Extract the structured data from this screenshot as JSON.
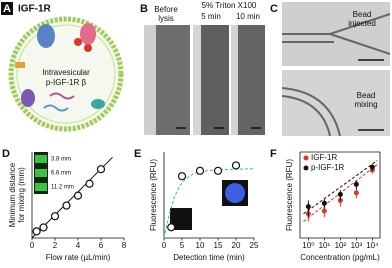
{
  "panels": {
    "a": {
      "label": "A",
      "title": "IGF-1R",
      "text": [
        "Intravesicular",
        "p-IGF-1R β"
      ]
    },
    "b": {
      "label": "B",
      "before": [
        "Before",
        "lysis"
      ],
      "treatment": "5% Triton X100",
      "times": [
        "5 min",
        "10 min"
      ]
    },
    "c": {
      "label": "C",
      "top": [
        "Bead",
        "injected"
      ],
      "bottom": [
        "Bead",
        "mixing"
      ]
    }
  },
  "chart_data": [
    {
      "type": "scatter",
      "panel": "D",
      "xlabel": "Flow rate (µL/min)",
      "ylabel": [
        "Minimum distance",
        "for mixing (mm)"
      ],
      "x": [
        0.4,
        1,
        2,
        3,
        4,
        5,
        6
      ],
      "values": [
        1,
        1.6,
        3.3,
        4.9,
        6.4,
        8.2,
        10.4
      ],
      "color": "#111",
      "fit": {
        "x": [
          0,
          7
        ],
        "values": [
          0,
          12.2
        ],
        "color": "#111",
        "dashed": false
      },
      "inset_labels": [
        "3.8 mm",
        "6.6 mm",
        "11.2 mm"
      ],
      "xlim": [
        0,
        8
      ],
      "xticks": [
        0,
        2,
        4,
        6,
        8
      ],
      "ylim": [
        0,
        13
      ]
    },
    {
      "type": "scatter",
      "panel": "E",
      "xlabel": "Detection time (min)",
      "ylabel": [
        "Fluorescence (RFU)"
      ],
      "x": [
        2,
        5,
        10,
        15,
        20
      ],
      "values": [
        20,
        115,
        125,
        125,
        135
      ],
      "color": "#111",
      "fit": {
        "x": [
          0,
          1.5,
          3,
          4.5,
          6,
          8,
          10,
          13,
          16,
          20,
          25
        ],
        "values": [
          0,
          45,
          78,
          98,
          110,
          119,
          123,
          126,
          127,
          128,
          129
        ],
        "color": "#2fb3c2",
        "dashed": true
      },
      "xlim": [
        0,
        25
      ],
      "xticks": [
        0,
        5,
        10,
        15,
        20,
        25
      ],
      "ylim": [
        0,
        160
      ]
    },
    {
      "type": "scatter",
      "panel": "F",
      "xlabel": "Concentration (pg/mL)",
      "ylabel": [
        "Fluorescence (RFU)"
      ],
      "log": true,
      "series": [
        {
          "name": "IGF-1R",
          "color": "#e63329",
          "x": [
            1,
            10,
            100,
            1000,
            10000
          ],
          "values": [
            5,
            6,
            12,
            20,
            90
          ],
          "errors": [
            2,
            2,
            4,
            6,
            18
          ],
          "fit": {
            "x": [
              0.5,
              20000
            ],
            "values": [
              3,
              130
            ]
          }
        },
        {
          "name": "p-IGF-1R",
          "color": "#111",
          "x": [
            1,
            10,
            100,
            1000,
            10000
          ],
          "values": [
            8,
            10,
            18,
            35,
            110
          ],
          "errors": [
            4,
            3,
            6,
            10,
            22
          ],
          "fit": {
            "x": [
              0.5,
              20000
            ],
            "values": [
              5,
              170
            ]
          }
        }
      ],
      "xlim": [
        0.3,
        30000
      ],
      "xticks": [
        {
          "value": 1,
          "label": "10⁰"
        },
        {
          "value": 10,
          "label": "10¹"
        },
        {
          "value": 100,
          "label": "10²"
        },
        {
          "value": 1000,
          "label": "10³"
        },
        {
          "value": 10000,
          "label": "10⁴"
        }
      ],
      "ylim": [
        1,
        300
      ]
    }
  ]
}
